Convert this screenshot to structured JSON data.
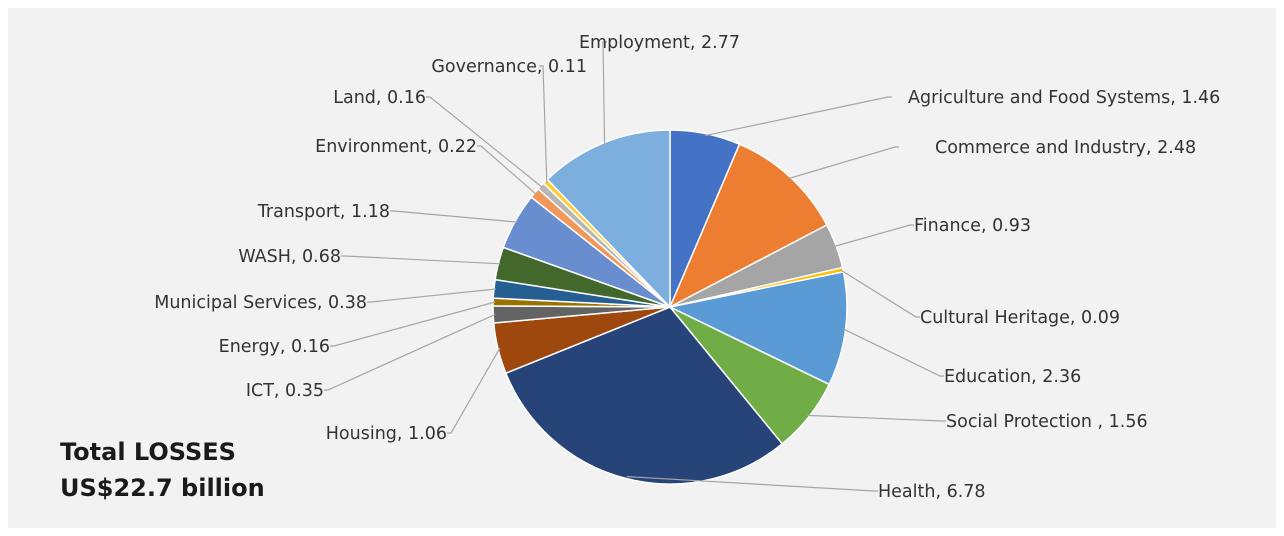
{
  "chart_data": {
    "type": "pie",
    "title": "",
    "slices": [
      {
        "label": "Agriculture and Food Systems",
        "value": 1.46,
        "color": "#4472c4"
      },
      {
        "label": "Commerce and Industry",
        "value": 2.48,
        "color": "#ed7d31"
      },
      {
        "label": "Finance",
        "value": 0.93,
        "color": "#a5a5a5"
      },
      {
        "label": "Cultural Heritage",
        "value": 0.09,
        "color": "#ffc000"
      },
      {
        "label": "Education",
        "value": 2.36,
        "color": "#5b9bd5"
      },
      {
        "label": "Social Protection ",
        "value": 1.56,
        "color": "#70ad47"
      },
      {
        "label": "Health",
        "value": 6.78,
        "color": "#264478"
      },
      {
        "label": "Housing",
        "value": 1.06,
        "color": "#9e480e"
      },
      {
        "label": "ICT",
        "value": 0.35,
        "color": "#636363"
      },
      {
        "label": "Energy",
        "value": 0.16,
        "color": "#997300"
      },
      {
        "label": "Municipal Services",
        "value": 0.38,
        "color": "#255e91"
      },
      {
        "label": "WASH",
        "value": 0.68,
        "color": "#43682b"
      },
      {
        "label": "Transport",
        "value": 1.18,
        "color": "#698ed0"
      },
      {
        "label": "Environment",
        "value": 0.22,
        "color": "#f1975a"
      },
      {
        "label": "Land",
        "value": 0.16,
        "color": "#b7b7b7"
      },
      {
        "label": "Governance",
        "value": 0.11,
        "color": "#ffcd33"
      },
      {
        "label": "Employment",
        "value": 2.77,
        "color": "#7cafdd"
      }
    ],
    "legend": "none",
    "data_labels": "category, value"
  },
  "total_label": {
    "line1": "Total LOSSES",
    "line2": "US$22.7 billion"
  }
}
